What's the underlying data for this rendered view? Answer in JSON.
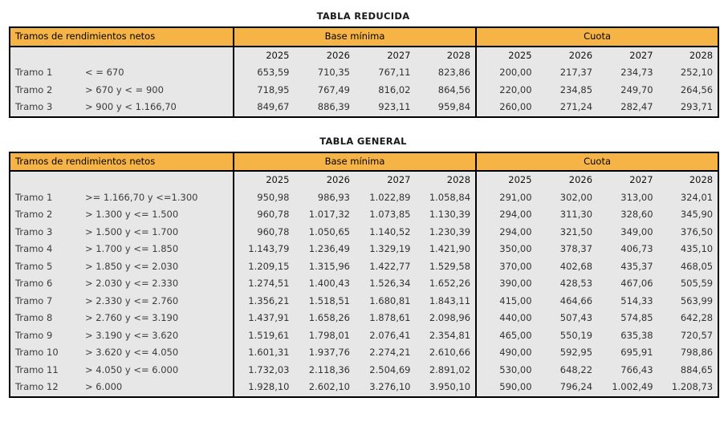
{
  "colors": {
    "header_orange": "#f7b446",
    "body_gray": "#e7e7e7",
    "border_black": "#000000",
    "page_background": "#ffffff"
  },
  "tables": [
    {
      "title": "TABLA REDUCIDA",
      "left_header": "Tramos de rendimientos netos",
      "group_headers": [
        "Base mínima",
        "Cuota"
      ],
      "years": [
        "2025",
        "2026",
        "2027",
        "2028"
      ],
      "rows": [
        {
          "label": "Tramo 1",
          "range": "< = 670",
          "base": [
            "653,59",
            "710,35",
            "767,11",
            "823,86"
          ],
          "cuota": [
            "200,00",
            "217,37",
            "234,73",
            "252,10"
          ]
        },
        {
          "label": "Tramo 2",
          "range": "> 670 y < = 900",
          "base": [
            "718,95",
            "767,49",
            "816,02",
            "864,56"
          ],
          "cuota": [
            "220,00",
            "234,85",
            "249,70",
            "264,56"
          ]
        },
        {
          "label": "Tramo 3",
          "range": "> 900 y < 1.166,70",
          "base": [
            "849,67",
            "886,39",
            "923,11",
            "959,84"
          ],
          "cuota": [
            "260,00",
            "271,24",
            "282,47",
            "293,71"
          ]
        }
      ]
    },
    {
      "title": "TABLA GENERAL",
      "left_header": "Tramos de rendimientos netos",
      "group_headers": [
        "Base mínima",
        "Cuota"
      ],
      "years": [
        "2025",
        "2026",
        "2027",
        "2028"
      ],
      "rows": [
        {
          "label": "Tramo 1",
          "range": ">= 1.166,70 y <=1.300",
          "base": [
            "950,98",
            "986,93",
            "1.022,89",
            "1.058,84"
          ],
          "cuota": [
            "291,00",
            "302,00",
            "313,00",
            "324,01"
          ]
        },
        {
          "label": "Tramo 2",
          "range": "> 1.300 y <= 1.500",
          "base": [
            "960,78",
            "1.017,32",
            "1.073,85",
            "1.130,39"
          ],
          "cuota": [
            "294,00",
            "311,30",
            "328,60",
            "345,90"
          ]
        },
        {
          "label": "Tramo 3",
          "range": "> 1.500 y <= 1.700",
          "base": [
            "960,78",
            "1.050,65",
            "1.140,52",
            "1.230,39"
          ],
          "cuota": [
            "294,00",
            "321,50",
            "349,00",
            "376,50"
          ]
        },
        {
          "label": "Tramo 4",
          "range": "> 1.700 y <= 1.850",
          "base": [
            "1.143,79",
            "1.236,49",
            "1.329,19",
            "1.421,90"
          ],
          "cuota": [
            "350,00",
            "378,37",
            "406,73",
            "435,10"
          ]
        },
        {
          "label": "Tramo 5",
          "range": "> 1.850 y <= 2.030",
          "base": [
            "1.209,15",
            "1.315,96",
            "1.422,77",
            "1.529,58"
          ],
          "cuota": [
            "370,00",
            "402,68",
            "435,37",
            "468,05"
          ]
        },
        {
          "label": "Tramo 6",
          "range": "> 2.030 y <= 2.330",
          "base": [
            "1.274,51",
            "1.400,43",
            "1.526,34",
            "1.652,26"
          ],
          "cuota": [
            "390,00",
            "428,53",
            "467,06",
            "505,59"
          ]
        },
        {
          "label": "Tramo 7",
          "range": "> 2.330 y <= 2.760",
          "base": [
            "1.356,21",
            "1.518,51",
            "1.680,81",
            "1.843,11"
          ],
          "cuota": [
            "415,00",
            "464,66",
            "514,33",
            "563,99"
          ]
        },
        {
          "label": "Tramo 8",
          "range": "> 2.760 y <= 3.190",
          "base": [
            "1.437,91",
            "1.658,26",
            "1.878,61",
            "2.098,96"
          ],
          "cuota": [
            "440,00",
            "507,43",
            "574,85",
            "642,28"
          ]
        },
        {
          "label": "Tramo 9",
          "range": "> 3.190 y <= 3.620",
          "base": [
            "1.519,61",
            "1.798,01",
            "2.076,41",
            "2.354,81"
          ],
          "cuota": [
            "465,00",
            "550,19",
            "635,38",
            "720,57"
          ]
        },
        {
          "label": "Tramo 10",
          "range": "> 3.620 y <= 4.050",
          "base": [
            "1.601,31",
            "1.937,76",
            "2.274,21",
            "2.610,66"
          ],
          "cuota": [
            "490,00",
            "592,95",
            "695,91",
            "798,86"
          ]
        },
        {
          "label": "Tramo 11",
          "range": "> 4.050 y <= 6.000",
          "base": [
            "1.732,03",
            "2.118,36",
            "2.504,69",
            "2.891,02"
          ],
          "cuota": [
            "530,00",
            "648,22",
            "766,43",
            "884,65"
          ]
        },
        {
          "label": "Tramo 12",
          "range": "> 6.000",
          "base": [
            "1.928,10",
            "2.602,10",
            "3.276,10",
            "3.950,10"
          ],
          "cuota": [
            "590,00",
            "796,24",
            "1.002,49",
            "1.208,73"
          ]
        }
      ]
    }
  ]
}
